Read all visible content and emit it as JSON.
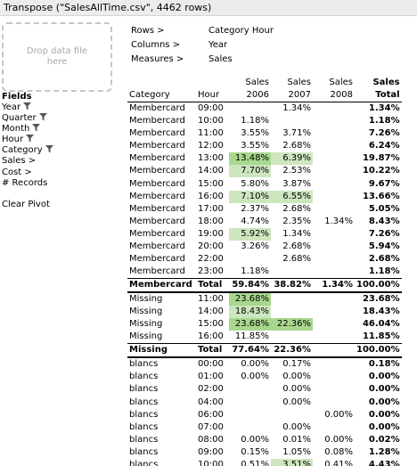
{
  "window": {
    "title": "Transpose (\"SalesAllTime.csv\", 4462 rows)"
  },
  "dropzone": {
    "text": "Drop data file here"
  },
  "fields": {
    "heading": "Fields",
    "items": [
      {
        "label": "Year",
        "filter": true
      },
      {
        "label": "Quarter",
        "filter": true
      },
      {
        "label": "Month",
        "filter": true
      },
      {
        "label": "Hour",
        "filter": true
      },
      {
        "label": "Category",
        "filter": true
      },
      {
        "label": "Sales >",
        "filter": false
      },
      {
        "label": "Cost >",
        "filter": false
      },
      {
        "label": "# Records",
        "filter": false
      }
    ],
    "clear_label": "Clear Pivot"
  },
  "config": {
    "rows_label": "Rows >",
    "rows_value": "Category Hour",
    "columns_label": "Columns >",
    "columns_value": "Year",
    "measures_label": "Measures >",
    "measures_value": "Sales"
  },
  "pivot": {
    "header_top": [
      "",
      "",
      "Sales",
      "Sales",
      "Sales",
      "Sales"
    ],
    "header_bottom": [
      "Category",
      "Hour",
      "2006",
      "2007",
      "2008",
      "Total"
    ],
    "rows": [
      {
        "cat": "Membercard",
        "hour": "09:00",
        "v2006": "",
        "v2007": "1.34%",
        "v2008": "",
        "total": "1.34%"
      },
      {
        "cat": "Membercard",
        "hour": "10:00",
        "v2006": "1.18%",
        "v2007": "",
        "v2008": "",
        "total": "1.18%"
      },
      {
        "cat": "Membercard",
        "hour": "11:00",
        "v2006": "3.55%",
        "v2007": "3.71%",
        "v2008": "",
        "total": "7.26%"
      },
      {
        "cat": "Membercard",
        "hour": "12:00",
        "v2006": "3.55%",
        "v2007": "2.68%",
        "v2008": "",
        "total": "6.24%"
      },
      {
        "cat": "Membercard",
        "hour": "13:00",
        "v2006": "13.48%",
        "v2007": "6.39%",
        "v2008": "",
        "total": "19.87%"
      },
      {
        "cat": "Membercard",
        "hour": "14:00",
        "v2006": "7.70%",
        "v2007": "2.53%",
        "v2008": "",
        "total": "10.22%"
      },
      {
        "cat": "Membercard",
        "hour": "15:00",
        "v2006": "5.80%",
        "v2007": "3.87%",
        "v2008": "",
        "total": "9.67%"
      },
      {
        "cat": "Membercard",
        "hour": "16:00",
        "v2006": "7.10%",
        "v2007": "6.55%",
        "v2008": "",
        "total": "13.66%"
      },
      {
        "cat": "Membercard",
        "hour": "17:00",
        "v2006": "2.37%",
        "v2007": "2.68%",
        "v2008": "",
        "total": "5.05%"
      },
      {
        "cat": "Membercard",
        "hour": "18:00",
        "v2006": "4.74%",
        "v2007": "2.35%",
        "v2008": "1.34%",
        "total": "8.43%"
      },
      {
        "cat": "Membercard",
        "hour": "19:00",
        "v2006": "5.92%",
        "v2007": "1.34%",
        "v2008": "",
        "total": "7.26%"
      },
      {
        "cat": "Membercard",
        "hour": "20:00",
        "v2006": "3.26%",
        "v2007": "2.68%",
        "v2008": "",
        "total": "5.94%"
      },
      {
        "cat": "Membercard",
        "hour": "22:00",
        "v2006": "",
        "v2007": "2.68%",
        "v2008": "",
        "total": "2.68%"
      },
      {
        "cat": "Membercard",
        "hour": "23:00",
        "v2006": "1.18%",
        "v2007": "",
        "v2008": "",
        "total": "1.18%"
      },
      {
        "type": "total",
        "cat": "Membercard",
        "hour": "Total",
        "v2006": "59.84%",
        "v2007": "38.82%",
        "v2008": "1.34%",
        "total": "100.00%"
      },
      {
        "cat": "Missing",
        "hour": "11:00",
        "v2006": "23.68%",
        "v2007": "",
        "v2008": "",
        "total": "23.68%"
      },
      {
        "cat": "Missing",
        "hour": "14:00",
        "v2006": "18.43%",
        "v2007": "",
        "v2008": "",
        "total": "18.43%"
      },
      {
        "cat": "Missing",
        "hour": "15:00",
        "v2006": "23.68%",
        "v2007": "22.36%",
        "v2008": "",
        "total": "46.04%"
      },
      {
        "cat": "Missing",
        "hour": "16:00",
        "v2006": "11.85%",
        "v2007": "",
        "v2008": "",
        "total": "11.85%"
      },
      {
        "type": "total",
        "cat": "Missing",
        "hour": "Total",
        "v2006": "77.64%",
        "v2007": "22.36%",
        "v2008": "",
        "total": "100.00%"
      },
      {
        "cat": "blancs",
        "hour": "00:00",
        "v2006": "0.00%",
        "v2007": "0.17%",
        "v2008": "",
        "total": "0.18%"
      },
      {
        "cat": "blancs",
        "hour": "01:00",
        "v2006": "0.00%",
        "v2007": "0.00%",
        "v2008": "",
        "total": "0.00%"
      },
      {
        "cat": "blancs",
        "hour": "02:00",
        "v2006": "",
        "v2007": "0.00%",
        "v2008": "",
        "total": "0.00%"
      },
      {
        "cat": "blancs",
        "hour": "04:00",
        "v2006": "",
        "v2007": "0.00%",
        "v2008": "",
        "total": "0.00%"
      },
      {
        "cat": "blancs",
        "hour": "06:00",
        "v2006": "",
        "v2007": "",
        "v2008": "0.00%",
        "total": "0.00%"
      },
      {
        "cat": "blancs",
        "hour": "07:00",
        "v2006": "",
        "v2007": "0.00%",
        "v2008": "",
        "total": "0.00%"
      },
      {
        "cat": "blancs",
        "hour": "08:00",
        "v2006": "0.00%",
        "v2007": "0.01%",
        "v2008": "0.00%",
        "total": "0.02%"
      },
      {
        "cat": "blancs",
        "hour": "09:00",
        "v2006": "0.15%",
        "v2007": "1.05%",
        "v2008": "0.08%",
        "total": "1.28%"
      },
      {
        "cat": "blancs",
        "hour": "10:00",
        "v2006": "0.51%",
        "v2007": "3.51%",
        "v2008": "0.41%",
        "total": "4.43%"
      }
    ],
    "highlight_cells": [
      {
        "row": 4,
        "col": "v2006",
        "level": 2
      },
      {
        "row": 4,
        "col": "v2007",
        "level": 1
      },
      {
        "row": 5,
        "col": "v2006",
        "level": 1
      },
      {
        "row": 7,
        "col": "v2006",
        "level": 1
      },
      {
        "row": 7,
        "col": "v2007",
        "level": 1
      },
      {
        "row": 10,
        "col": "v2006",
        "level": 1
      },
      {
        "row": 15,
        "col": "v2006",
        "level": 2
      },
      {
        "row": 16,
        "col": "v2006",
        "level": 1
      },
      {
        "row": 17,
        "col": "v2006",
        "level": 2
      },
      {
        "row": 17,
        "col": "v2007",
        "level": 2
      },
      {
        "row": 28,
        "col": "v2007",
        "level": 1
      }
    ]
  },
  "colors": {
    "highlight_light": "#cde6bf",
    "highlight_dark": "#a8d88e"
  },
  "icons": {
    "filter": "funnel-icon"
  }
}
